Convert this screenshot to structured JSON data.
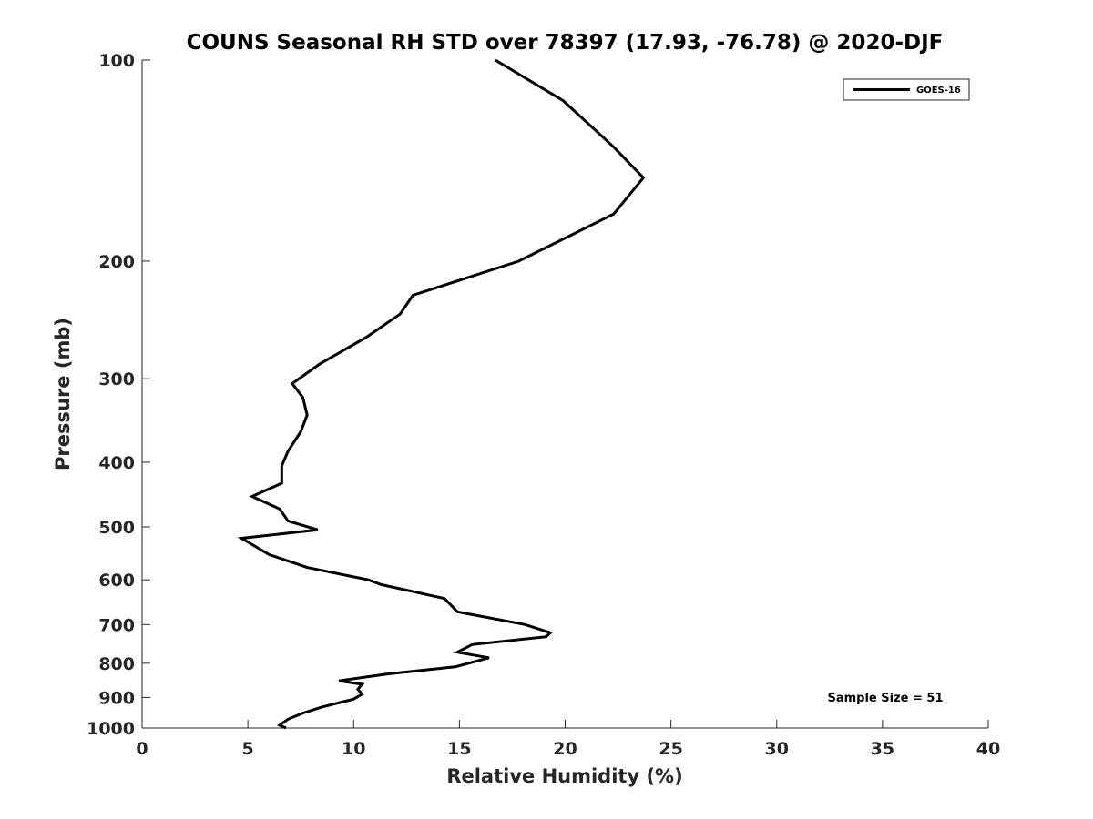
{
  "chart_data": {
    "type": "line",
    "title": "COUNS Seasonal RH STD over 78397 (17.93, -76.78) @ 2020-DJF",
    "xlabel": "Relative Humidity (%)",
    "ylabel": "Pressure (mb)",
    "xlim": [
      0,
      40
    ],
    "ylim": [
      100,
      1000
    ],
    "yscale": "log",
    "yreversed": true,
    "xticks": [
      0,
      5,
      10,
      15,
      20,
      25,
      30,
      35,
      40
    ],
    "yticks": [
      100,
      200,
      300,
      400,
      500,
      600,
      700,
      800,
      900,
      1000
    ],
    "grid": false,
    "legend": {
      "position": "top-right",
      "entries": [
        "GOES-16"
      ]
    },
    "annotation": "Sample Size = 51",
    "series": [
      {
        "name": "GOES-16",
        "color": "#000000",
        "x": [
          16.7,
          19.9,
          22.3,
          23.7,
          22.3,
          17.8,
          12.8,
          12.2,
          10.6,
          8.4,
          7.1,
          7.6,
          7.8,
          7.5,
          6.9,
          6.6,
          6.6,
          5.2,
          6.5,
          6.9,
          8.3,
          4.7,
          6.0,
          7.8,
          10.7,
          11.3,
          14.3,
          14.9,
          18.1,
          19.3,
          19.1,
          15.6,
          14.9,
          16.4,
          14.8,
          11.6,
          9.3,
          10.4,
          10.2,
          10.4,
          10.0,
          8.5,
          7.6,
          6.9,
          6.5,
          6.8
        ],
        "y": [
          100,
          115,
          135,
          150,
          170,
          200,
          225,
          240,
          260,
          285,
          305,
          320,
          340,
          360,
          385,
          405,
          430,
          450,
          470,
          490,
          505,
          520,
          550,
          575,
          600,
          610,
          640,
          670,
          700,
          720,
          730,
          750,
          770,
          785,
          810,
          830,
          850,
          860,
          875,
          890,
          905,
          930,
          950,
          970,
          990,
          1000
        ]
      }
    ]
  }
}
